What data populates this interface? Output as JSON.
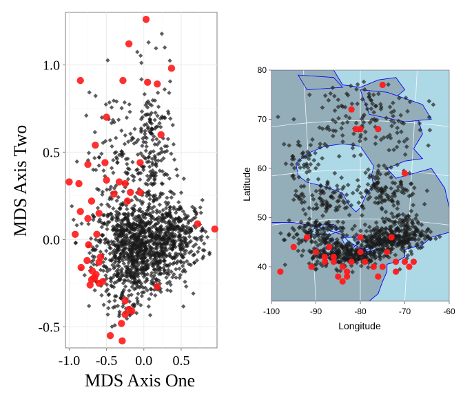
{
  "colors": {
    "background_point": "#1a1a1a",
    "highlight_point": "#ff1a1a",
    "panel_grid": "#ebebeb",
    "ocean": "#add8e6",
    "land": "#93aeb8",
    "coastline": "#0000ff",
    "graticule": "#ffffff"
  },
  "chart_data": [
    {
      "type": "scatter",
      "title": "",
      "xlabel": "MDS Axis One",
      "ylabel": "MDS Axis Two",
      "xlim": [
        -1.05,
        0.98
      ],
      "ylim": [
        -0.62,
        1.3
      ],
      "x_ticks": [
        -1.0,
        -0.5,
        0.0,
        0.5
      ],
      "x_tick_labels": [
        "-1.0",
        "-0.5",
        "0.0",
        "0.5"
      ],
      "y_ticks": [
        -0.5,
        0.0,
        0.5,
        1.0
      ],
      "y_tick_labels": [
        "-0.5",
        "0.0",
        "0.5",
        "1.0"
      ],
      "grid": true,
      "series": [
        {
          "role": "background",
          "marker": "diamond",
          "color": "#1a1a1a",
          "cloud": {
            "main_blob": {
              "center": [
                -0.1,
                -0.05
              ],
              "spread": [
                0.28,
                0.13
              ],
              "n": 900
            },
            "right_lobe": {
              "center": [
                0.45,
                0.02
              ],
              "spread": [
                0.2,
                0.1
              ],
              "n": 280
            },
            "upper_arm": {
              "center": [
                0.12,
                0.45
              ],
              "spread": [
                0.14,
                0.25
              ],
              "n": 200
            },
            "upper_left": {
              "center": [
                -0.38,
                0.45
              ],
              "spread": [
                0.22,
                0.22
              ],
              "n": 130
            },
            "lower_tail": {
              "center": [
                -0.25,
                -0.35
              ],
              "spread": [
                0.12,
                0.08
              ],
              "n": 60
            }
          }
        },
        {
          "role": "highlight",
          "marker": "circle",
          "color": "#ff1a1a",
          "points": [
            [
              0.03,
              1.26
            ],
            [
              -0.2,
              1.12
            ],
            [
              0.37,
              0.98
            ],
            [
              -0.28,
              0.91
            ],
            [
              0.05,
              0.9
            ],
            [
              0.18,
              0.89
            ],
            [
              -0.85,
              0.91
            ],
            [
              -0.5,
              0.7
            ],
            [
              0.23,
              0.6
            ],
            [
              -0.65,
              0.54
            ],
            [
              -0.52,
              0.44
            ],
            [
              -0.75,
              0.43
            ],
            [
              -0.05,
              0.44
            ],
            [
              -1.0,
              0.33
            ],
            [
              -0.87,
              0.32
            ],
            [
              -0.5,
              0.34
            ],
            [
              -0.33,
              0.33
            ],
            [
              -0.25,
              0.32
            ],
            [
              -0.18,
              0.27
            ],
            [
              -0.7,
              0.22
            ],
            [
              -0.4,
              0.26
            ],
            [
              -0.05,
              0.27
            ],
            [
              -0.22,
              0.22
            ],
            [
              -0.85,
              0.16
            ],
            [
              -0.6,
              0.15
            ],
            [
              -0.75,
              0.12
            ],
            [
              0.72,
              0.09
            ],
            [
              0.95,
              0.06
            ],
            [
              -0.92,
              0.03
            ],
            [
              -0.63,
              0.03
            ],
            [
              -0.74,
              -0.03
            ],
            [
              -0.58,
              -0.1
            ],
            [
              -0.6,
              -0.13
            ],
            [
              -0.76,
              -0.12
            ],
            [
              -0.84,
              -0.16
            ],
            [
              -0.69,
              -0.18
            ],
            [
              -0.64,
              -0.2
            ],
            [
              -0.66,
              -0.22
            ],
            [
              -0.6,
              -0.25
            ],
            [
              -0.7,
              -0.23
            ],
            [
              -0.67,
              -0.22
            ],
            [
              -0.72,
              -0.26
            ],
            [
              -0.55,
              -0.24
            ],
            [
              -0.25,
              -0.35
            ],
            [
              -0.2,
              -0.4
            ],
            [
              -0.25,
              -0.43
            ],
            [
              -0.16,
              -0.41
            ],
            [
              -0.3,
              -0.48
            ],
            [
              -0.45,
              -0.55
            ],
            [
              -0.29,
              -0.58
            ],
            [
              0.18,
              -0.27
            ]
          ]
        }
      ]
    },
    {
      "type": "scatter",
      "title": "",
      "xlabel": "Longitude",
      "ylabel": "Latitude",
      "xlim": [
        -100,
        -60
      ],
      "ylim": [
        33,
        80
      ],
      "x_ticks": [
        -100,
        -90,
        -80,
        -70,
        -60
      ],
      "x_tick_labels": [
        "-100",
        "-90",
        "-80",
        "-70",
        "-60"
      ],
      "y_ticks": [
        40,
        50,
        60,
        70,
        80
      ],
      "y_tick_labels": [
        "40",
        "50",
        "60",
        "70",
        "80"
      ],
      "grid": true,
      "series": [
        {
          "role": "background",
          "marker": "diamond",
          "color": "#1a1a1a",
          "clusters": [
            {
              "center": [
                -83,
                42.5
              ],
              "spread": [
                6,
                2
              ],
              "n": 260
            },
            {
              "center": [
                -75,
                45.5
              ],
              "spread": [
                4,
                2
              ],
              "n": 180
            },
            {
              "center": [
                -70,
                47
              ],
              "spread": [
                4,
                3
              ],
              "n": 160
            },
            {
              "center": [
                -90,
                47
              ],
              "spread": [
                5,
                2.5
              ],
              "n": 120
            },
            {
              "center": [
                -88,
                54
              ],
              "spread": [
                5,
                3
              ],
              "n": 90
            },
            {
              "center": [
                -74,
                56
              ],
              "spread": [
                5,
                3
              ],
              "n": 110
            },
            {
              "center": [
                -93,
                62
              ],
              "spread": [
                3,
                3
              ],
              "n": 40
            },
            {
              "center": [
                -80,
                68
              ],
              "spread": [
                9,
                4
              ],
              "n": 90
            },
            {
              "center": [
                -78,
                74
              ],
              "spread": [
                8,
                2.5
              ],
              "n": 45
            }
          ]
        },
        {
          "role": "highlight",
          "marker": "circle",
          "color": "#ff1a1a",
          "points": [
            [
              -75,
              77
            ],
            [
              -82,
              72
            ],
            [
              -81,
              68
            ],
            [
              -80,
              68
            ],
            [
              -76,
              68
            ],
            [
              -70,
              59
            ],
            [
              -92,
              46
            ],
            [
              -80,
              46
            ],
            [
              -87,
              44
            ],
            [
              -73,
              46
            ],
            [
              -95,
              44
            ],
            [
              -90,
              43
            ],
            [
              -80,
              43
            ],
            [
              -74,
              43
            ],
            [
              -72,
              41
            ],
            [
              -70,
              41
            ],
            [
              -68,
              41
            ],
            [
              -69,
              40
            ],
            [
              -75,
              40
            ],
            [
              -77,
              40
            ],
            [
              -79,
              41
            ],
            [
              -82,
              41
            ],
            [
              -84,
              40
            ],
            [
              -86,
              41
            ],
            [
              -88,
              41
            ],
            [
              -83,
              39
            ],
            [
              -85,
              38
            ],
            [
              -83,
              38
            ],
            [
              -84,
              37
            ],
            [
              -76,
              38
            ],
            [
              -72,
              39
            ],
            [
              -98,
              39
            ],
            [
              -91,
              40
            ],
            [
              -88,
              42
            ],
            [
              -86,
              42
            ]
          ]
        }
      ]
    }
  ]
}
